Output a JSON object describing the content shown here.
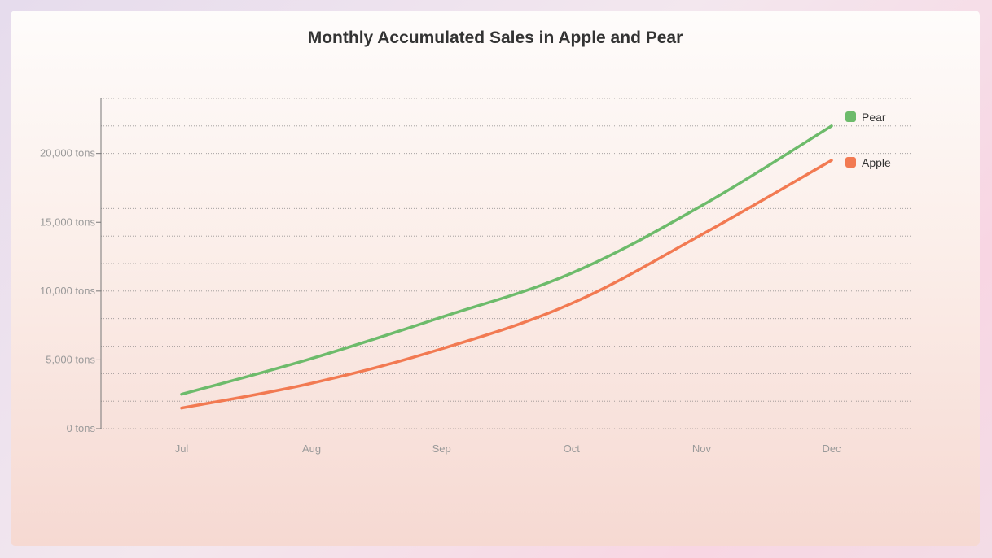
{
  "chart_data": {
    "type": "line",
    "title": "Monthly Accumulated Sales in Apple and Pear",
    "categories": [
      "Jul",
      "Aug",
      "Sep",
      "Oct",
      "Nov",
      "Dec"
    ],
    "series": [
      {
        "name": "Pear",
        "color": "#6dbb6b",
        "values": [
          2500,
          5100,
          8100,
          11300,
          16200,
          22000
        ]
      },
      {
        "name": "Apple",
        "color": "#f27a52",
        "values": [
          1500,
          3300,
          5800,
          9100,
          14100,
          19500
        ]
      }
    ],
    "ylim": [
      0,
      24000
    ],
    "y_ticks": [
      {
        "value": 0,
        "label": "0 tons"
      },
      {
        "value": 5000,
        "label": "5,000 tons"
      },
      {
        "value": 10000,
        "label": "10,000 tons"
      },
      {
        "value": 15000,
        "label": "15,000 tons"
      },
      {
        "value": 20000,
        "label": "20,000 tons"
      }
    ],
    "grid": true,
    "legend_position": "top-right"
  }
}
